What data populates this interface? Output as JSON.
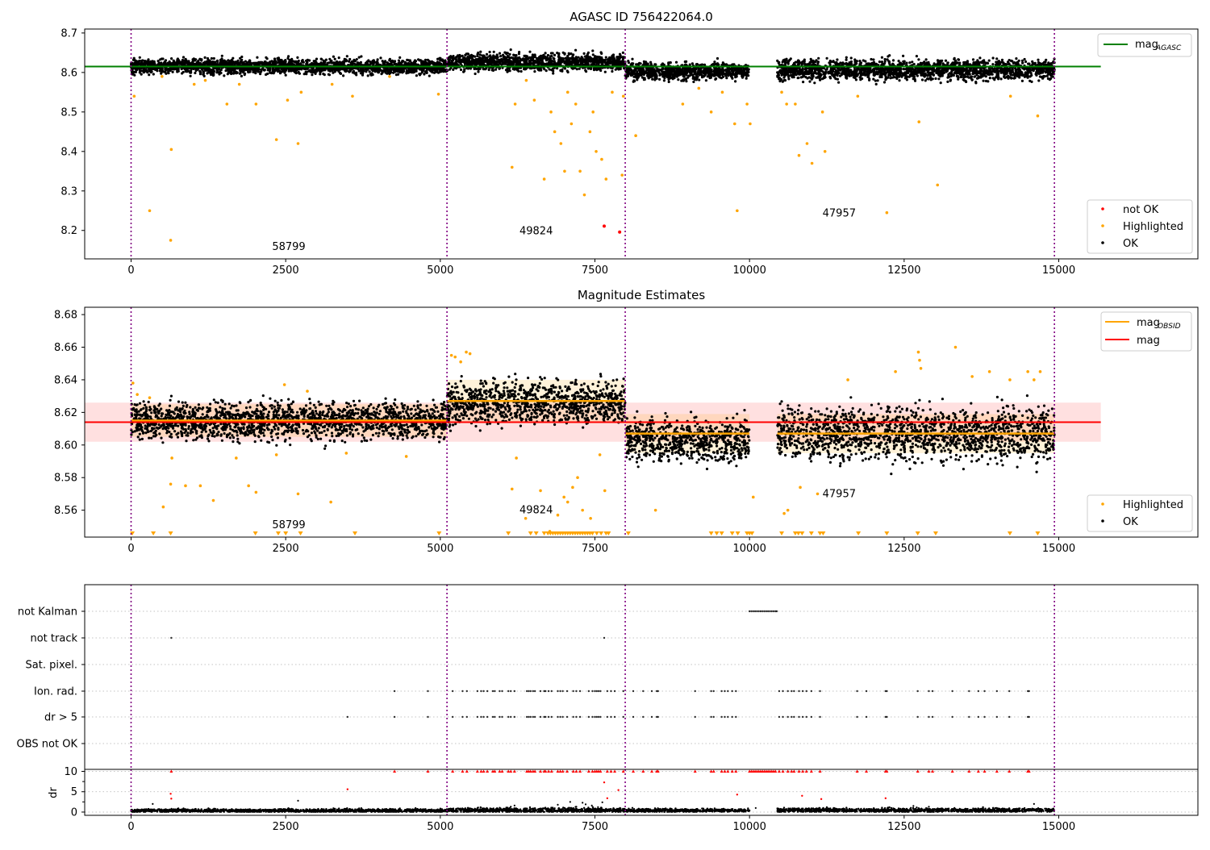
{
  "chart_data": [
    {
      "type": "scatter",
      "title": "AGASC ID 756422064.0",
      "xlim": [
        -750,
        17250
      ],
      "ylim": [
        8.128,
        8.71
      ],
      "xticks": [
        0,
        2500,
        5000,
        7500,
        10000,
        12500,
        15000
      ],
      "yticks": [
        8.2,
        8.3,
        8.4,
        8.5,
        8.6,
        8.7
      ],
      "obs_boundaries": [
        0,
        5108,
        7990,
        14930
      ],
      "obs_labels": [
        {
          "text": "58799",
          "x": 2550,
          "y": 8.15
        },
        {
          "text": "49824",
          "x": 6550,
          "y": 8.19
        },
        {
          "text": "47957",
          "x": 11450,
          "y": 8.235
        }
      ],
      "ok_segments": [
        {
          "x": [
            0,
            5108
          ],
          "center": 8.615,
          "spread": 0.013
        },
        {
          "x": [
            5108,
            7990
          ],
          "center": 8.626,
          "spread": 0.015
        },
        {
          "x": [
            7990,
            10000
          ],
          "center": 8.603,
          "spread": 0.015
        },
        {
          "x": [
            10450,
            14930
          ],
          "center": 8.607,
          "spread": 0.018
        }
      ],
      "series": [
        {
          "name": "mag_AGASC",
          "type": "line",
          "color": "#008000",
          "x": [
            -750,
            15680
          ],
          "y": [
            8.615,
            8.615
          ]
        },
        {
          "name": "not OK",
          "type": "scatter",
          "color": "#ff0000",
          "x": [
            7650,
            7900
          ],
          "y": [
            8.211,
            8.196
          ]
        },
        {
          "name": "Highlighted",
          "type": "scatter",
          "color": "#ffa500",
          "x": [
            50,
            300,
            500,
            650,
            640,
            1020,
            1200,
            1550,
            1750,
            2020,
            2350,
            2530,
            2700,
            2750,
            3250,
            3580,
            4180,
            4970,
            6160,
            6210,
            6390,
            6520,
            6680,
            6790,
            6850,
            6950,
            7010,
            7060,
            7120,
            7190,
            7260,
            7330,
            7420,
            7470,
            7520,
            7610,
            7680,
            7780,
            7940,
            7960,
            8160,
            8920,
            9180,
            9380,
            9560,
            9760,
            9800,
            9960,
            10010,
            10520,
            10600,
            10740,
            10800,
            10930,
            11010,
            11180,
            11220,
            11750,
            12220,
            12740,
            13040,
            14220,
            14660
          ],
          "y": [
            8.54,
            8.25,
            8.59,
            8.405,
            8.175,
            8.57,
            8.58,
            8.52,
            8.57,
            8.52,
            8.43,
            8.53,
            8.42,
            8.55,
            8.57,
            8.54,
            8.59,
            8.545,
            8.36,
            8.52,
            8.58,
            8.53,
            8.33,
            8.5,
            8.45,
            8.42,
            8.35,
            8.55,
            8.47,
            8.52,
            8.35,
            8.29,
            8.45,
            8.5,
            8.4,
            8.38,
            8.33,
            8.55,
            8.34,
            8.54,
            8.44,
            8.52,
            8.56,
            8.5,
            8.55,
            8.47,
            8.25,
            8.52,
            8.47,
            8.55,
            8.52,
            8.52,
            8.39,
            8.42,
            8.37,
            8.5,
            8.4,
            8.54,
            8.245,
            8.475,
            8.315,
            8.54,
            8.49
          ]
        },
        {
          "name": "OK",
          "type": "scatter",
          "color": "#000000"
        }
      ],
      "legend_upper_right": [
        "mag_AGASC"
      ],
      "legend_lower_right": [
        "not OK",
        "Highlighted",
        "OK"
      ]
    },
    {
      "type": "scatter",
      "title": "Magnitude Estimates",
      "xlim": [
        -750,
        17250
      ],
      "ylim": [
        8.5435,
        8.6845
      ],
      "xticks": [
        0,
        2500,
        5000,
        7500,
        10000,
        12500,
        15000
      ],
      "yticks": [
        8.56,
        8.58,
        8.6,
        8.62,
        8.64,
        8.66,
        8.68
      ],
      "obs_boundaries": [
        0,
        5108,
        7990,
        14930
      ],
      "obs_labels": [
        {
          "text": "58799",
          "x": 2550,
          "y": 8.549
        },
        {
          "text": "49824",
          "x": 6550,
          "y": 8.558
        },
        {
          "text": "47957",
          "x": 11450,
          "y": 8.568
        }
      ],
      "mag": {
        "value": 8.614,
        "band": [
          8.602,
          8.626
        ],
        "x": [
          -750,
          15680
        ],
        "color": "#ff0000"
      },
      "mag_obsid": [
        {
          "x": [
            0,
            5108
          ],
          "value": 8.615,
          "band": [
            8.605,
            8.625
          ]
        },
        {
          "x": [
            5108,
            7990
          ],
          "value": 8.627,
          "band": [
            8.614,
            8.64
          ]
        },
        {
          "x": [
            7990,
            10000
          ],
          "value": 8.607,
          "band": [
            8.595,
            8.619
          ]
        },
        {
          "x": [
            10450,
            14930
          ],
          "value": 8.607,
          "band": [
            8.595,
            8.619
          ]
        }
      ],
      "ok_segments": [
        {
          "x": [
            0,
            5108
          ],
          "center": 8.615,
          "spread": 0.008
        },
        {
          "x": [
            5108,
            7990
          ],
          "center": 8.626,
          "spread": 0.009
        },
        {
          "x": [
            7990,
            10000
          ],
          "center": 8.603,
          "spread": 0.009
        },
        {
          "x": [
            10450,
            14930
          ],
          "center": 8.607,
          "spread": 0.011
        }
      ],
      "series": [
        {
          "name": "mag_OBSID",
          "type": "line",
          "color": "#ffa500"
        },
        {
          "name": "mag",
          "type": "line",
          "color": "#ff0000"
        },
        {
          "name": "Highlighted",
          "type": "scatter",
          "color": "#ffa500",
          "x": [
            30,
            100,
            300,
            520,
            640,
            660,
            880,
            1120,
            1330,
            1700,
            1900,
            2020,
            2350,
            2480,
            2700,
            2850,
            3230,
            3480,
            4450,
            5180,
            5240,
            5330,
            5420,
            5480,
            6160,
            6230,
            6380,
            6620,
            6770,
            6900,
            7000,
            7060,
            7140,
            7220,
            7300,
            7430,
            7580,
            7660,
            8480,
            10060,
            10560,
            10620,
            10820,
            11100,
            11590,
            12360,
            12730,
            12750,
            12770,
            13330,
            13600,
            13880,
            14210,
            14500,
            14600,
            14700
          ],
          "y": [
            8.638,
            8.631,
            8.629,
            8.562,
            8.576,
            8.592,
            8.575,
            8.575,
            8.566,
            8.592,
            8.575,
            8.571,
            8.594,
            8.637,
            8.57,
            8.633,
            8.565,
            8.595,
            8.593,
            8.655,
            8.654,
            8.651,
            8.657,
            8.656,
            8.573,
            8.592,
            8.555,
            8.572,
            8.547,
            8.557,
            8.568,
            8.565,
            8.574,
            8.58,
            8.56,
            8.555,
            8.594,
            8.572,
            8.56,
            8.568,
            8.558,
            8.56,
            8.574,
            8.57,
            8.64,
            8.645,
            8.657,
            8.652,
            8.647,
            8.66,
            8.642,
            8.645,
            8.64,
            8.645,
            8.64,
            8.645
          ]
        },
        {
          "name": "Highlighted (below range)",
          "type": "marker-triangle",
          "color": "#ffa500",
          "x": [
            20,
            360,
            640,
            2010,
            2380,
            2500,
            2740,
            3620,
            4980,
            6100,
            6460,
            6550,
            6680,
            6740,
            6780,
            6820,
            6860,
            6900,
            6940,
            6980,
            7020,
            7060,
            7100,
            7140,
            7180,
            7220,
            7260,
            7300,
            7340,
            7380,
            7420,
            7460,
            7530,
            7600,
            7680,
            7720,
            8040,
            9380,
            9470,
            9550,
            9720,
            9810,
            9960,
            10000,
            10040,
            10520,
            10740,
            10790,
            10850,
            11000,
            11140,
            11190,
            11760,
            12220,
            12720,
            13010,
            14210,
            14660
          ]
        },
        {
          "name": "OK",
          "type": "scatter",
          "color": "#000000"
        }
      ],
      "legend_upper_right": [
        "mag_OBSID",
        "mag"
      ],
      "legend_lower_right": [
        "Highlighted",
        "OK"
      ]
    },
    {
      "type": "scatter",
      "title": "",
      "xlim": [
        -750,
        17250
      ],
      "xticks": [
        0,
        2500,
        5000,
        7500,
        10000,
        12500,
        15000
      ],
      "obs_boundaries": [
        0,
        5108,
        7990,
        14930
      ],
      "categories": [
        "not Kalman",
        "not track",
        "Sat. pixel.",
        "Ion. rad.",
        "dr > 5",
        "OBS not OK"
      ],
      "flags": {
        "not Kalman": [
          10000,
          10030,
          10060,
          10090,
          10120,
          10150,
          10180,
          10210,
          10240,
          10270,
          10300,
          10330,
          10360,
          10390,
          10420,
          10440
        ],
        "not track": [
          650,
          7650
        ],
        "Sat. pixel.": [],
        "Ion. rad.": [
          4260,
          4800,
          5200,
          5360,
          5430,
          5600,
          5660,
          5700,
          5760,
          5850,
          5880,
          5960,
          6000,
          6100,
          6140,
          6200,
          6400,
          6430,
          6460,
          6500,
          6530,
          6620,
          6680,
          6700,
          6750,
          6800,
          6900,
          6940,
          6980,
          7050,
          7150,
          7200,
          7260,
          7400,
          7460,
          7500,
          7530,
          7560,
          7590,
          7700,
          7760,
          7820,
          7960,
          8120,
          8280,
          8420,
          8500,
          8520,
          9120,
          9380,
          9420,
          9550,
          9600,
          9650,
          9720,
          9780,
          10480,
          10540,
          10620,
          10680,
          10720,
          10800,
          10860,
          10920,
          11000,
          11140,
          11740,
          11890,
          12200,
          12220,
          12720,
          12900,
          12960,
          13280,
          13550,
          13700,
          13800,
          14000,
          14200,
          14500,
          14520
        ],
        "dr > 5": [
          3500,
          4260,
          4800,
          5200,
          5360,
          5430,
          5600,
          5660,
          5700,
          5760,
          5850,
          5880,
          5960,
          6000,
          6100,
          6140,
          6200,
          6400,
          6430,
          6460,
          6500,
          6530,
          6620,
          6680,
          6700,
          6750,
          6800,
          6900,
          6940,
          6980,
          7050,
          7150,
          7200,
          7260,
          7400,
          7460,
          7500,
          7530,
          7560,
          7590,
          7700,
          7760,
          7820,
          7960,
          8120,
          8280,
          8420,
          8500,
          8520,
          9120,
          9380,
          9420,
          9550,
          9600,
          9650,
          9720,
          9780,
          10480,
          10540,
          10620,
          10680,
          10720,
          10800,
          10860,
          10920,
          11000,
          11140,
          11740,
          11890,
          12200,
          12220,
          12720,
          12900,
          12960,
          13280,
          13550,
          13700,
          13800,
          14000,
          14200,
          14500,
          14520
        ],
        "OBS not OK": []
      }
    },
    {
      "type": "scatter",
      "title": "",
      "ylabel": "dr",
      "xlim": [
        -750,
        17250
      ],
      "ylim": [
        -0.8,
        10.5
      ],
      "xticks": [
        0,
        2500,
        5000,
        7500,
        10000,
        12500,
        15000
      ],
      "yticks": [
        0,
        5,
        10
      ],
      "minor_yticks": [
        2.5,
        7.5
      ],
      "obs_boundaries": [
        0,
        5108,
        7990,
        14930
      ],
      "ok_segments": [
        {
          "x": [
            0,
            5108
          ],
          "center": 0.35,
          "spread": 0.3
        },
        {
          "x": [
            5108,
            7990
          ],
          "center": 0.45,
          "spread": 0.4
        },
        {
          "x": [
            7990,
            10000
          ],
          "center": 0.4,
          "spread": 0.3
        },
        {
          "x": [
            10450,
            14930
          ],
          "center": 0.45,
          "spread": 0.35
        }
      ],
      "series": [
        {
          "name": "dr capped at 10",
          "type": "marker-triangle-up",
          "color": "#ff0000",
          "x": [
            650,
            4260,
            4800,
            5200,
            5360,
            5430,
            5600,
            5660,
            5700,
            5760,
            5850,
            5880,
            5960,
            6000,
            6100,
            6140,
            6200,
            6400,
            6430,
            6460,
            6500,
            6530,
            6620,
            6680,
            6700,
            6750,
            6800,
            6900,
            6940,
            6980,
            7050,
            7150,
            7200,
            7260,
            7400,
            7460,
            7500,
            7530,
            7560,
            7590,
            7700,
            7760,
            7820,
            7960,
            8120,
            8280,
            8420,
            8500,
            8520,
            9120,
            9380,
            9420,
            9550,
            9600,
            9650,
            9720,
            9780,
            10000,
            10030,
            10060,
            10090,
            10120,
            10150,
            10180,
            10210,
            10240,
            10270,
            10300,
            10330,
            10360,
            10390,
            10420,
            10480,
            10540,
            10620,
            10680,
            10720,
            10800,
            10860,
            10920,
            11000,
            11140,
            11740,
            11890,
            12200,
            12220,
            12720,
            12900,
            12960,
            13280,
            13550,
            13700,
            13800,
            14000,
            14200,
            14500,
            14520
          ]
        },
        {
          "name": "dr large",
          "type": "scatter",
          "color": "#ff0000",
          "x": [
            640,
            650,
            3500,
            7650,
            7700,
            7880,
            9800,
            10850,
            11160,
            12200
          ],
          "y": [
            4.5,
            3.3,
            5.6,
            7.3,
            3.4,
            5.4,
            4.3,
            4.0,
            3.2,
            3.4
          ]
        },
        {
          "name": "dr small outliers",
          "type": "scatter",
          "color": "#000000",
          "x": [
            350,
            2700,
            4600,
            6200,
            6900,
            7100,
            7200,
            7300,
            7350,
            7450,
            7550,
            7620,
            10100,
            11250,
            12650,
            12900,
            14600
          ],
          "y": [
            2.0,
            2.8,
            1.0,
            1.6,
            1.8,
            2.5,
            1.3,
            2.3,
            1.9,
            1.6,
            1.2,
            2.4,
            1.0,
            1.2,
            1.5,
            1.3,
            2.0
          ]
        },
        {
          "name": "OK",
          "type": "scatter",
          "color": "#000000"
        }
      ]
    }
  ],
  "legend": {
    "panel1_top": {
      "label": "mag",
      "sub": "AGASC"
    },
    "panel1_bottom": [
      "not OK",
      "Highlighted",
      "OK"
    ],
    "panel2_top": [
      {
        "label": "mag",
        "sub": "OBSID"
      },
      {
        "label": "mag",
        "sub": ""
      }
    ],
    "panel2_bottom": [
      "Highlighted",
      "OK"
    ]
  },
  "annotations": {
    "p1": [
      "58799",
      "49824",
      "47957"
    ],
    "p2": [
      "58799",
      "49824",
      "47957"
    ]
  }
}
